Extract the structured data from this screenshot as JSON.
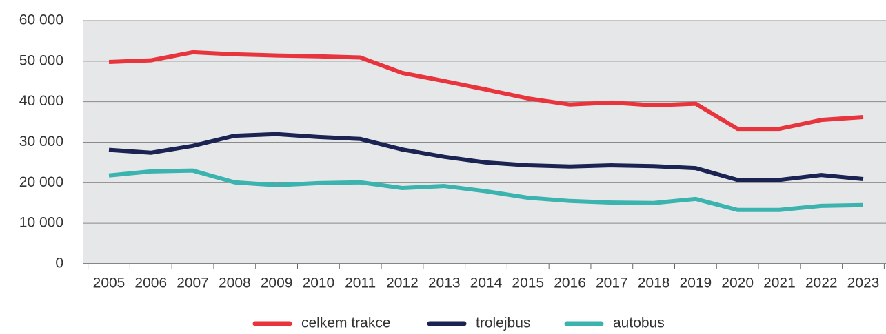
{
  "chart_data": {
    "type": "line",
    "categories": [
      "2005",
      "2006",
      "2007",
      "2008",
      "2009",
      "2010",
      "2011",
      "2012",
      "2013",
      "2014",
      "2015",
      "2016",
      "2017",
      "2018",
      "2019",
      "2020",
      "2021",
      "2022",
      "2023"
    ],
    "series": [
      {
        "name": "celkem trakce",
        "color": "#e8343c",
        "values": [
          49800,
          50200,
          52200,
          51700,
          51400,
          51200,
          50900,
          47100,
          45100,
          43000,
          40800,
          39300,
          39800,
          39100,
          39500,
          33300,
          33300,
          35500,
          36200
        ]
      },
      {
        "name": "trolejbus",
        "color": "#1a2352",
        "values": [
          28100,
          27400,
          29100,
          31600,
          32000,
          31300,
          30800,
          28200,
          26400,
          25000,
          24300,
          24000,
          24300,
          24100,
          23600,
          20700,
          20700,
          21900,
          20900
        ]
      },
      {
        "name": "autobus",
        "color": "#3bb3ae",
        "values": [
          21800,
          22800,
          23000,
          20100,
          19400,
          19900,
          20100,
          18700,
          19200,
          17900,
          16300,
          15500,
          15100,
          15000,
          16000,
          13300,
          13300,
          14300,
          14500
        ]
      }
    ],
    "ylim": [
      0,
      60000
    ],
    "yticks": [
      0,
      {
        "value": 10000,
        "label": "10 000"
      },
      {
        "value": 20000,
        "label": "20 000"
      },
      {
        "value": 30000,
        "label": "30 000"
      },
      {
        "value": 40000,
        "label": "40 000"
      },
      {
        "value": 50000,
        "label": "50 000"
      },
      {
        "value": 60000,
        "label": "60 000"
      }
    ],
    "grid": true,
    "legend": "bottom"
  }
}
